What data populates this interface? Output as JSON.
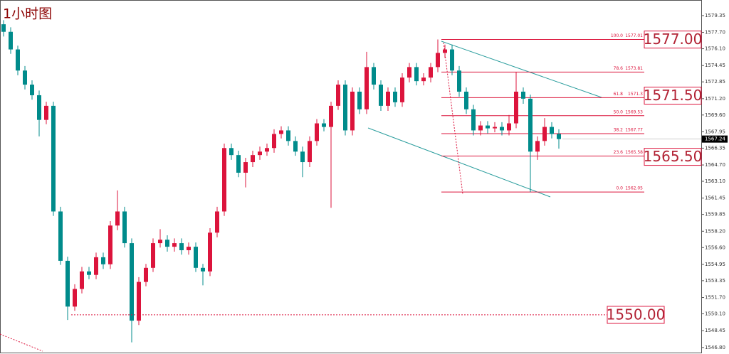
{
  "chart_data": {
    "type": "candlestick",
    "title": "1小时图",
    "open": [
      1578.5,
      1577.76,
      1576.03,
      1573.96,
      1572.58,
      1571.54,
      1569.12,
      1570.5,
      1560.14,
      1555.3,
      1550.81,
      1552.54,
      1554.26,
      1553.92,
      1555.65,
      1554.96,
      1558.76,
      1560.14,
      1557.03,
      1549.43,
      1553.23,
      1554.61,
      1557.03,
      1557.37,
      1556.68,
      1557.03,
      1556.34,
      1556.68,
      1554.61,
      1554.26,
      1558.06,
      1560.14,
      1566.36,
      1565.67,
      1563.94,
      1564.98,
      1565.67,
      1566.01,
      1566.36,
      1567.74,
      1568.09,
      1567.05,
      1566.01,
      1564.98,
      1567.05,
      1568.78,
      1568.43,
      1570.5,
      1572.58,
      1568.09,
      1571.89,
      1570.16,
      1574.3,
      1572.58,
      1570.5,
      1571.89,
      1570.85,
      1573.27,
      1574.3,
      1572.92,
      1573.27,
      1574.3,
      1575.69,
      1576.03,
      1573.96,
      1571.89,
      1570.16,
      1568.09,
      1568.57,
      1568.29,
      1568.43,
      1568.09,
      1568.78,
      1571.89,
      1571.2,
      1566.01,
      1567.05,
      1568.43,
      1567.74
    ],
    "high": [
      1578.9,
      1578.2,
      1576.4,
      1574.4,
      1573.0,
      1572.0,
      1570.9,
      1570.9,
      1560.6,
      1555.7,
      1553.0,
      1554.7,
      1554.7,
      1556.1,
      1556.1,
      1559.2,
      1562.2,
      1560.6,
      1557.5,
      1553.7,
      1555.0,
      1557.5,
      1558.4,
      1557.8,
      1557.5,
      1557.5,
      1557.1,
      1557.1,
      1555.0,
      1558.5,
      1560.6,
      1566.8,
      1566.8,
      1566.1,
      1565.4,
      1566.1,
      1566.5,
      1566.8,
      1568.2,
      1568.5,
      1568.5,
      1567.5,
      1566.5,
      1567.5,
      1569.2,
      1569.2,
      1570.9,
      1573.0,
      1573.0,
      1572.3,
      1572.3,
      1575.8,
      1574.7,
      1573.0,
      1572.3,
      1572.3,
      1573.7,
      1574.7,
      1574.7,
      1573.7,
      1574.7,
      1577.01,
      1576.5,
      1576.5,
      1574.4,
      1572.3,
      1570.6,
      1569.0,
      1569.0,
      1568.9,
      1568.9,
      1569.6,
      1573.8,
      1572.3,
      1571.6,
      1567.5,
      1569.3,
      1568.9,
      1568.2
    ],
    "low": [
      1577.3,
      1575.6,
      1573.5,
      1572.1,
      1571.1,
      1567.5,
      1568.7,
      1559.7,
      1554.9,
      1549.5,
      1550.4,
      1552.1,
      1553.5,
      1553.5,
      1554.5,
      1554.5,
      1558.3,
      1556.6,
      1547.3,
      1549.0,
      1552.8,
      1554.2,
      1556.6,
      1556.2,
      1556.2,
      1555.9,
      1555.9,
      1554.2,
      1552.9,
      1553.8,
      1557.6,
      1559.7,
      1565.2,
      1563.5,
      1562.5,
      1564.5,
      1565.2,
      1565.6,
      1565.9,
      1567.3,
      1566.6,
      1565.6,
      1563.5,
      1564.5,
      1566.6,
      1568.0,
      1560.5,
      1570.1,
      1567.6,
      1567.6,
      1569.7,
      1569.7,
      1572.1,
      1570.0,
      1570.0,
      1570.4,
      1570.4,
      1572.8,
      1572.5,
      1572.5,
      1572.8,
      1573.8,
      1575.2,
      1573.5,
      1571.4,
      1569.7,
      1567.6,
      1567.6,
      1567.8,
      1567.9,
      1567.6,
      1567.6,
      1568.3,
      1570.7,
      1562.05,
      1565.2,
      1566.6,
      1567.3,
      1566.3
    ],
    "close": [
      1577.76,
      1576.03,
      1573.96,
      1572.58,
      1571.54,
      1569.12,
      1570.5,
      1560.14,
      1555.3,
      1550.81,
      1552.54,
      1554.26,
      1553.92,
      1555.65,
      1554.96,
      1558.76,
      1560.14,
      1557.03,
      1549.43,
      1553.23,
      1554.61,
      1557.03,
      1557.37,
      1556.68,
      1557.03,
      1556.34,
      1556.68,
      1554.61,
      1554.26,
      1558.06,
      1560.14,
      1566.36,
      1565.67,
      1563.94,
      1564.98,
      1565.67,
      1566.01,
      1566.36,
      1567.74,
      1568.09,
      1567.05,
      1566.01,
      1564.98,
      1567.05,
      1568.78,
      1568.43,
      1570.5,
      1572.58,
      1568.09,
      1571.89,
      1570.16,
      1574.3,
      1572.58,
      1570.5,
      1571.89,
      1570.85,
      1573.27,
      1574.3,
      1572.92,
      1573.27,
      1574.3,
      1575.69,
      1576.03,
      1573.96,
      1571.89,
      1570.16,
      1568.09,
      1568.57,
      1568.29,
      1568.43,
      1568.09,
      1568.78,
      1571.89,
      1571.2,
      1566.01,
      1567.05,
      1568.43,
      1567.74,
      1567.24
    ],
    "up_color": "#dc143c",
    "down_color": "#008b8b",
    "ylim": [
      1546.3,
      1580.6
    ],
    "yticks": [
      1579.35,
      {
        "value": 1577.7,
        "label": "1577.70"
      },
      {
        "value": 1576.1,
        "label": "1576.10"
      },
      1574.45,
      1572.85,
      {
        "value": 1571.2,
        "label": "1571.20"
      },
      {
        "value": 1569.6,
        "label": "1569.60"
      },
      1567.95,
      1566.35,
      {
        "value": 1564.7,
        "label": "1564.70"
      },
      {
        "value": 1563.1,
        "label": "1563.10"
      },
      1561.45,
      1559.85,
      {
        "value": 1558.2,
        "label": "1558.20"
      },
      {
        "value": 1556.6,
        "label": "1556.60"
      },
      1554.95,
      1553.35,
      {
        "value": 1551.7,
        "label": "1551.70"
      },
      {
        "value": 1550.1,
        "label": "1550.10"
      },
      1548.45,
      {
        "value": 1546.8,
        "label": "1546.80"
      }
    ],
    "current_price": 1567.24,
    "fib_levels": [
      {
        "ratio": "100.0",
        "price": 1577.01
      },
      {
        "ratio": "78.6",
        "price": 1573.81
      },
      {
        "ratio": "61.8",
        "price": 1571.3
      },
      {
        "ratio": "50.0",
        "price": 1569.53
      },
      {
        "ratio": "38.2",
        "price": 1567.77
      },
      {
        "ratio": "23.6",
        "price": 1565.58
      },
      {
        "ratio": "0.0",
        "price": 1562.05
      }
    ],
    "fib_color": "#dc143c",
    "key_levels": [
      {
        "value": 1577,
        "label": "1577.00"
      },
      {
        "value": 1571.5,
        "label": "1571.50"
      },
      {
        "value": 1565.5,
        "label": "1565.50"
      },
      {
        "value": 1550,
        "label": "1550.00"
      }
    ]
  }
}
